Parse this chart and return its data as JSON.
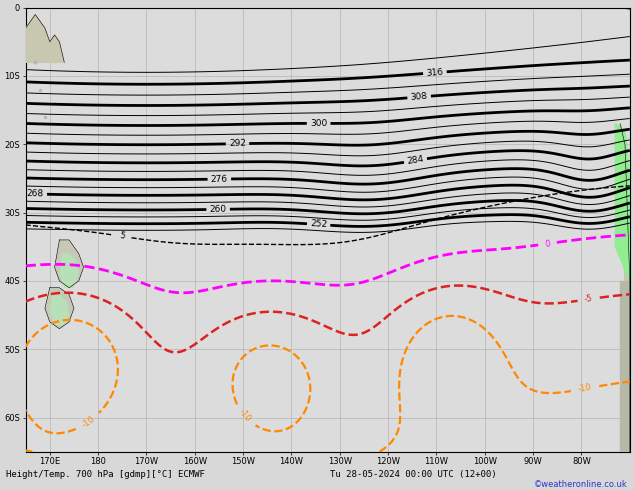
{
  "title": "Height/Temp. 700 hPa [gdmp][°C] ECMWF",
  "subtitle": "Tu 28-05-2024 00:00 UTC (12+00)",
  "credit": "©weatheronline.co.uk",
  "background_color": "#d8d8d8",
  "map_facecolor": "#dcdcdc",
  "grid_color": "#aaaaaa",
  "figsize": [
    6.34,
    4.9
  ],
  "dpi": 100,
  "xlim": [
    165,
    290
  ],
  "ylim": [
    -65,
    0
  ],
  "temp_0_color": "#ff00ff",
  "temp_neg5_color": "#dd2222",
  "temp_neg10_color": "#ff8800",
  "temp_neg15_color": "#ff9900",
  "temp_green_color": "#44cc00"
}
